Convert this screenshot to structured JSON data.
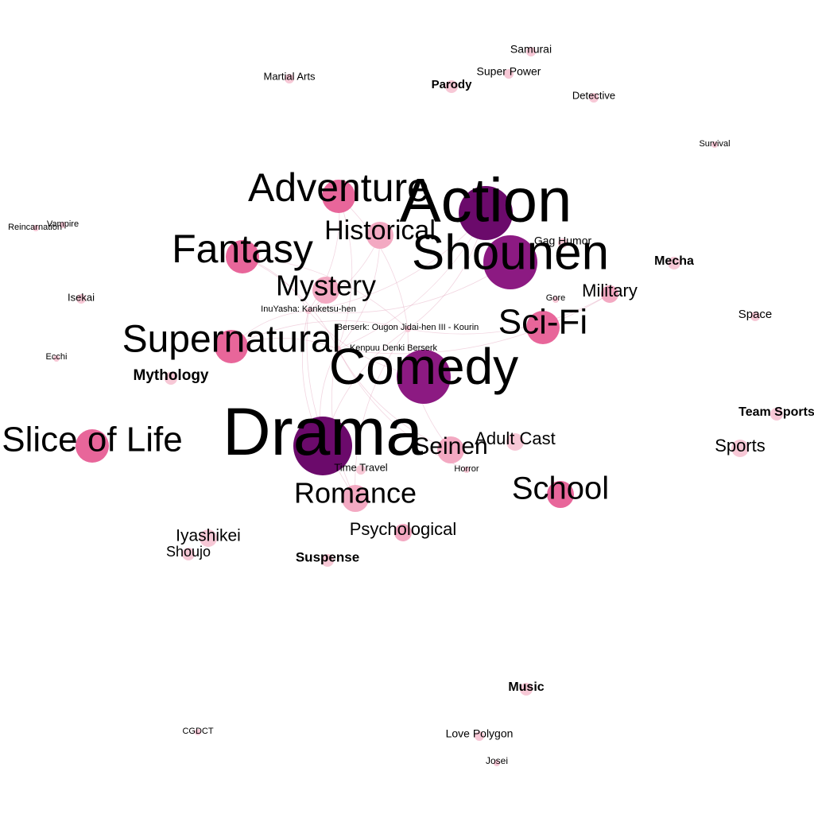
{
  "graph": {
    "colors": {
      "large": "#6b0a6b",
      "large_alt": "#7a1578",
      "mid_dark": "#8c1a82",
      "medium": "#e8669a",
      "light": "#f3a9c2",
      "pale": "#f7c8d6",
      "edge": "#d98aa8"
    },
    "nodes": [
      {
        "id": "action",
        "label": "Action",
        "tier": "xl",
        "color": "large"
      },
      {
        "id": "shounen",
        "label": "Shounen",
        "tier": "xl",
        "color": "mid_dark"
      },
      {
        "id": "comedy",
        "label": "Comedy",
        "tier": "xl",
        "color": "mid_dark"
      },
      {
        "id": "drama",
        "label": "Drama",
        "tier": "xxl",
        "color": "large"
      },
      {
        "id": "adventure",
        "label": "Adventure",
        "tier": "l",
        "color": "medium"
      },
      {
        "id": "historical",
        "label": "Historical",
        "tier": "m",
        "color": "light"
      },
      {
        "id": "fantasy",
        "label": "Fantasy",
        "tier": "l",
        "color": "medium"
      },
      {
        "id": "mystery",
        "label": "Mystery",
        "tier": "m",
        "color": "light"
      },
      {
        "id": "supernatural",
        "label": "Supernatural",
        "tier": "l",
        "color": "medium"
      },
      {
        "id": "sci-fi",
        "label": "Sci-Fi",
        "tier": "l",
        "color": "medium"
      },
      {
        "id": "slice-of-life",
        "label": "Slice of Life",
        "tier": "l",
        "color": "medium"
      },
      {
        "id": "seinen",
        "label": "Seinen",
        "tier": "m",
        "color": "light"
      },
      {
        "id": "adult-cast",
        "label": "Adult Cast",
        "tier": "s",
        "color": "pale"
      },
      {
        "id": "romance",
        "label": "Romance",
        "tier": "m",
        "color": "light"
      },
      {
        "id": "school",
        "label": "School",
        "tier": "m",
        "color": "medium"
      },
      {
        "id": "psychological",
        "label": "Psychological",
        "tier": "s",
        "color": "light"
      },
      {
        "id": "military",
        "label": "Military",
        "tier": "s",
        "color": "light"
      },
      {
        "id": "mythology",
        "label": "Mythology",
        "tier": "xs",
        "color": "pale"
      },
      {
        "id": "iyashikei",
        "label": "Iyashikei",
        "tier": "s",
        "color": "pale"
      },
      {
        "id": "shoujo",
        "label": "Shoujo",
        "tier": "xs",
        "color": "pale"
      },
      {
        "id": "suspense",
        "label": "Suspense",
        "tier": "xs",
        "color": "pale"
      },
      {
        "id": "sports",
        "label": "Sports",
        "tier": "s",
        "color": "pale"
      },
      {
        "id": "team-sports",
        "label": "Team Sports",
        "tier": "xs",
        "color": "pale"
      },
      {
        "id": "mecha",
        "label": "Mecha",
        "tier": "xs",
        "color": "pale"
      },
      {
        "id": "space",
        "label": "Space",
        "tier": "xxs",
        "color": "pale"
      },
      {
        "id": "gag-humor",
        "label": "Gag Humor",
        "tier": "xxs",
        "color": "pale"
      },
      {
        "id": "gore",
        "label": "Gore",
        "tier": "xxxs",
        "color": "pale"
      },
      {
        "id": "time-travel",
        "label": "Time Travel",
        "tier": "xxs",
        "color": "pale"
      },
      {
        "id": "horror",
        "label": "Horror",
        "tier": "xxxs",
        "color": "pale"
      },
      {
        "id": "music",
        "label": "Music",
        "tier": "xs",
        "color": "pale"
      },
      {
        "id": "love-polygon",
        "label": "Love Polygon",
        "tier": "xxs",
        "color": "pale"
      },
      {
        "id": "josei",
        "label": "Josei",
        "tier": "xxxs",
        "color": "pale"
      },
      {
        "id": "cgdct",
        "label": "CGDCT",
        "tier": "xxxs",
        "color": "pale"
      },
      {
        "id": "martial-arts",
        "label": "Martial Arts",
        "tier": "xxs",
        "color": "pale"
      },
      {
        "id": "parody",
        "label": "Parody",
        "tier": "xs",
        "color": "pale"
      },
      {
        "id": "super-power",
        "label": "Super Power",
        "tier": "xxs",
        "color": "pale"
      },
      {
        "id": "samurai",
        "label": "Samurai",
        "tier": "xxs",
        "color": "pale"
      },
      {
        "id": "detective",
        "label": "Detective",
        "tier": "xxs",
        "color": "pale"
      },
      {
        "id": "survival",
        "label": "Survival",
        "tier": "xxxs",
        "color": "pale"
      },
      {
        "id": "reincarnation",
        "label": "Reincarnation",
        "tier": "xxxs",
        "color": "pale"
      },
      {
        "id": "vampire",
        "label": "Vampire",
        "tier": "xxxs",
        "color": "pale"
      },
      {
        "id": "isekai",
        "label": "Isekai",
        "tier": "xxs",
        "color": "pale"
      },
      {
        "id": "ecchi",
        "label": "Ecchi",
        "tier": "xxxs",
        "color": "pale"
      },
      {
        "id": "inuyasha",
        "label": "InuYasha: Kanketsu-hen",
        "tier": "xxxs",
        "color": "pale"
      },
      {
        "id": "berserk-3",
        "label": "Berserk: Ougon Jidai-hen III - Kourin",
        "tier": "xxxs",
        "color": "pale"
      },
      {
        "id": "kenpuu",
        "label": "Kenpuu Denki Berserk",
        "tier": "xxxs",
        "color": "pale"
      }
    ],
    "edges": [
      [
        "inuyasha",
        "action"
      ],
      [
        "inuyasha",
        "adventure"
      ],
      [
        "inuyasha",
        "comedy"
      ],
      [
        "inuyasha",
        "drama"
      ],
      [
        "inuyasha",
        "fantasy"
      ],
      [
        "inuyasha",
        "romance"
      ],
      [
        "inuyasha",
        "supernatural"
      ],
      [
        "inuyasha",
        "shounen"
      ],
      [
        "inuyasha",
        "historical"
      ],
      [
        "inuyasha",
        "mystery"
      ],
      [
        "berserk-3",
        "action"
      ],
      [
        "berserk-3",
        "adventure"
      ],
      [
        "berserk-3",
        "drama"
      ],
      [
        "berserk-3",
        "fantasy"
      ],
      [
        "berserk-3",
        "military"
      ],
      [
        "berserk-3",
        "seinen"
      ],
      [
        "berserk-3",
        "supernatural"
      ],
      [
        "berserk-3",
        "romance"
      ],
      [
        "kenpuu",
        "action"
      ],
      [
        "kenpuu",
        "adventure"
      ],
      [
        "kenpuu",
        "drama"
      ],
      [
        "kenpuu",
        "fantasy"
      ],
      [
        "kenpuu",
        "historical"
      ],
      [
        "kenpuu",
        "military"
      ],
      [
        "kenpuu",
        "seinen"
      ],
      [
        "kenpuu",
        "supernatural"
      ],
      [
        "kenpuu",
        "romance"
      ],
      [
        "kenpuu",
        "horror"
      ]
    ]
  }
}
